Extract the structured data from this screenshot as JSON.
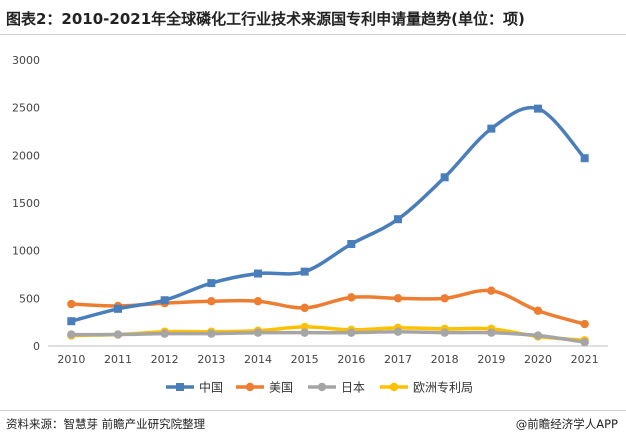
{
  "header": {
    "title": "图表2：2010-2021年全球磷化工行业技术来源国专利申请量趋势(单位：项)"
  },
  "footer": {
    "source": "资料来源：智慧芽 前瞻产业研究院整理",
    "credit": "@前瞻经济学人APP"
  },
  "chart_data": {
    "type": "line",
    "title": "图表2：2010-2021年全球磷化工行业技术来源国专利申请量趋势(单位：项)",
    "unit": "项",
    "x": [
      "2010",
      "2011",
      "2012",
      "2013",
      "2014",
      "2015",
      "2016",
      "2017",
      "2018",
      "2019",
      "2020",
      "2021"
    ],
    "ylim": [
      0,
      3000
    ],
    "yticks": [
      0,
      500,
      1000,
      1500,
      2000,
      2500,
      3000
    ],
    "grid": false,
    "smooth": true,
    "legend_position": "bottom",
    "series": [
      {
        "name": "中国",
        "color": "#4a7ebb",
        "marker": "square",
        "values": [
          260,
          390,
          480,
          660,
          760,
          780,
          1070,
          1330,
          1770,
          2280,
          2490,
          1970
        ]
      },
      {
        "name": "美国",
        "color": "#ed7d31",
        "marker": "circle",
        "values": [
          440,
          420,
          450,
          470,
          470,
          400,
          510,
          500,
          500,
          580,
          370,
          230
        ]
      },
      {
        "name": "日本",
        "color": "#a5a5a5",
        "marker": "circle",
        "values": [
          120,
          120,
          130,
          130,
          140,
          140,
          140,
          150,
          140,
          140,
          110,
          40
        ]
      },
      {
        "name": "欧洲专利局",
        "color": "#ffc000",
        "marker": "circle",
        "values": [
          110,
          120,
          150,
          150,
          160,
          200,
          170,
          190,
          180,
          180,
          100,
          60
        ]
      }
    ]
  }
}
